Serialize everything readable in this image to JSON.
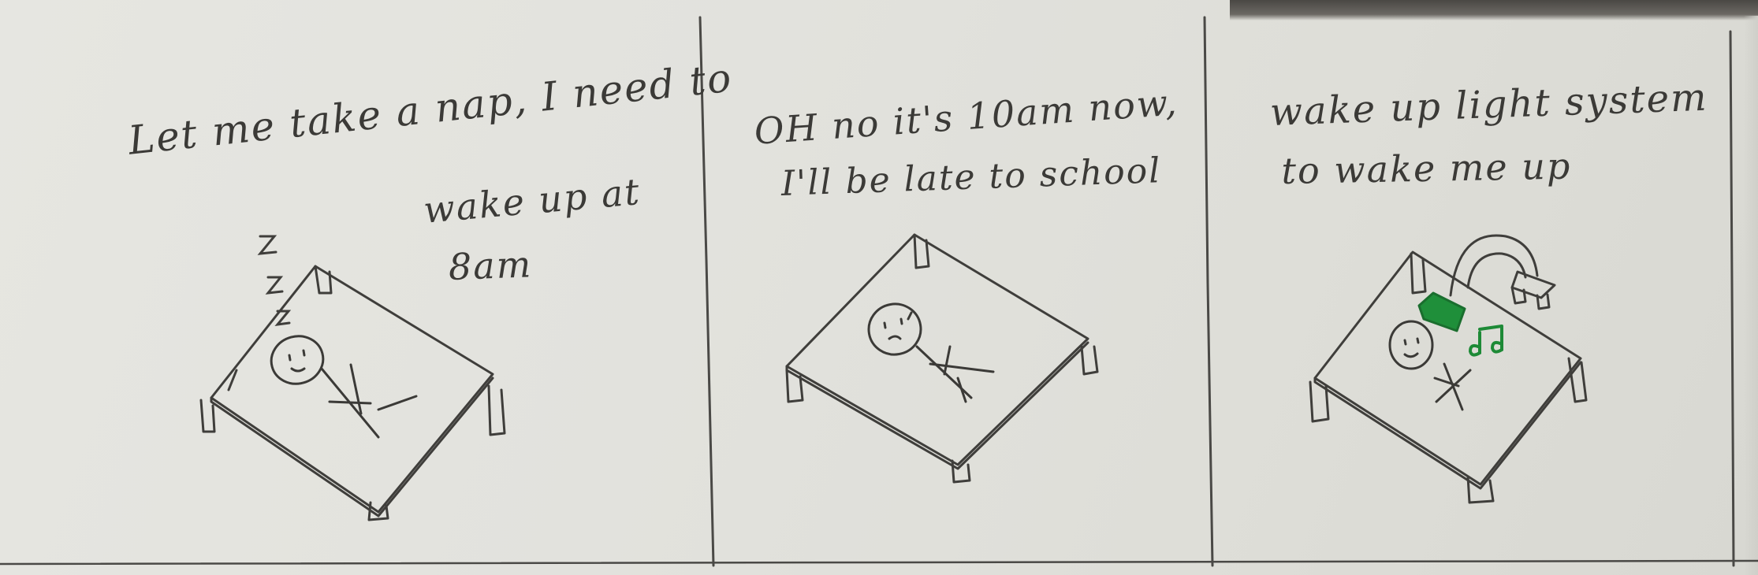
{
  "panels": [
    {
      "caption_lines": [
        "Let me take a nap, I need to",
        "wake up at",
        "8am"
      ],
      "sleep_marks": [
        "z",
        "z",
        "z"
      ]
    },
    {
      "caption_lines": [
        "OH no it's 10am now,",
        "I'll be late to school"
      ]
    },
    {
      "caption_lines": [
        "wake up light system",
        "to wake me up"
      ]
    }
  ],
  "colors": {
    "paper": "#e2e2dd",
    "pencil": "#3b3a37",
    "light_device": "#1f8f3a",
    "music_notes": "#1d8a36"
  },
  "icons": [
    "sleeping-stick-figure",
    "bed",
    "worried-stick-figure",
    "wake-up-light",
    "music-notes"
  ]
}
